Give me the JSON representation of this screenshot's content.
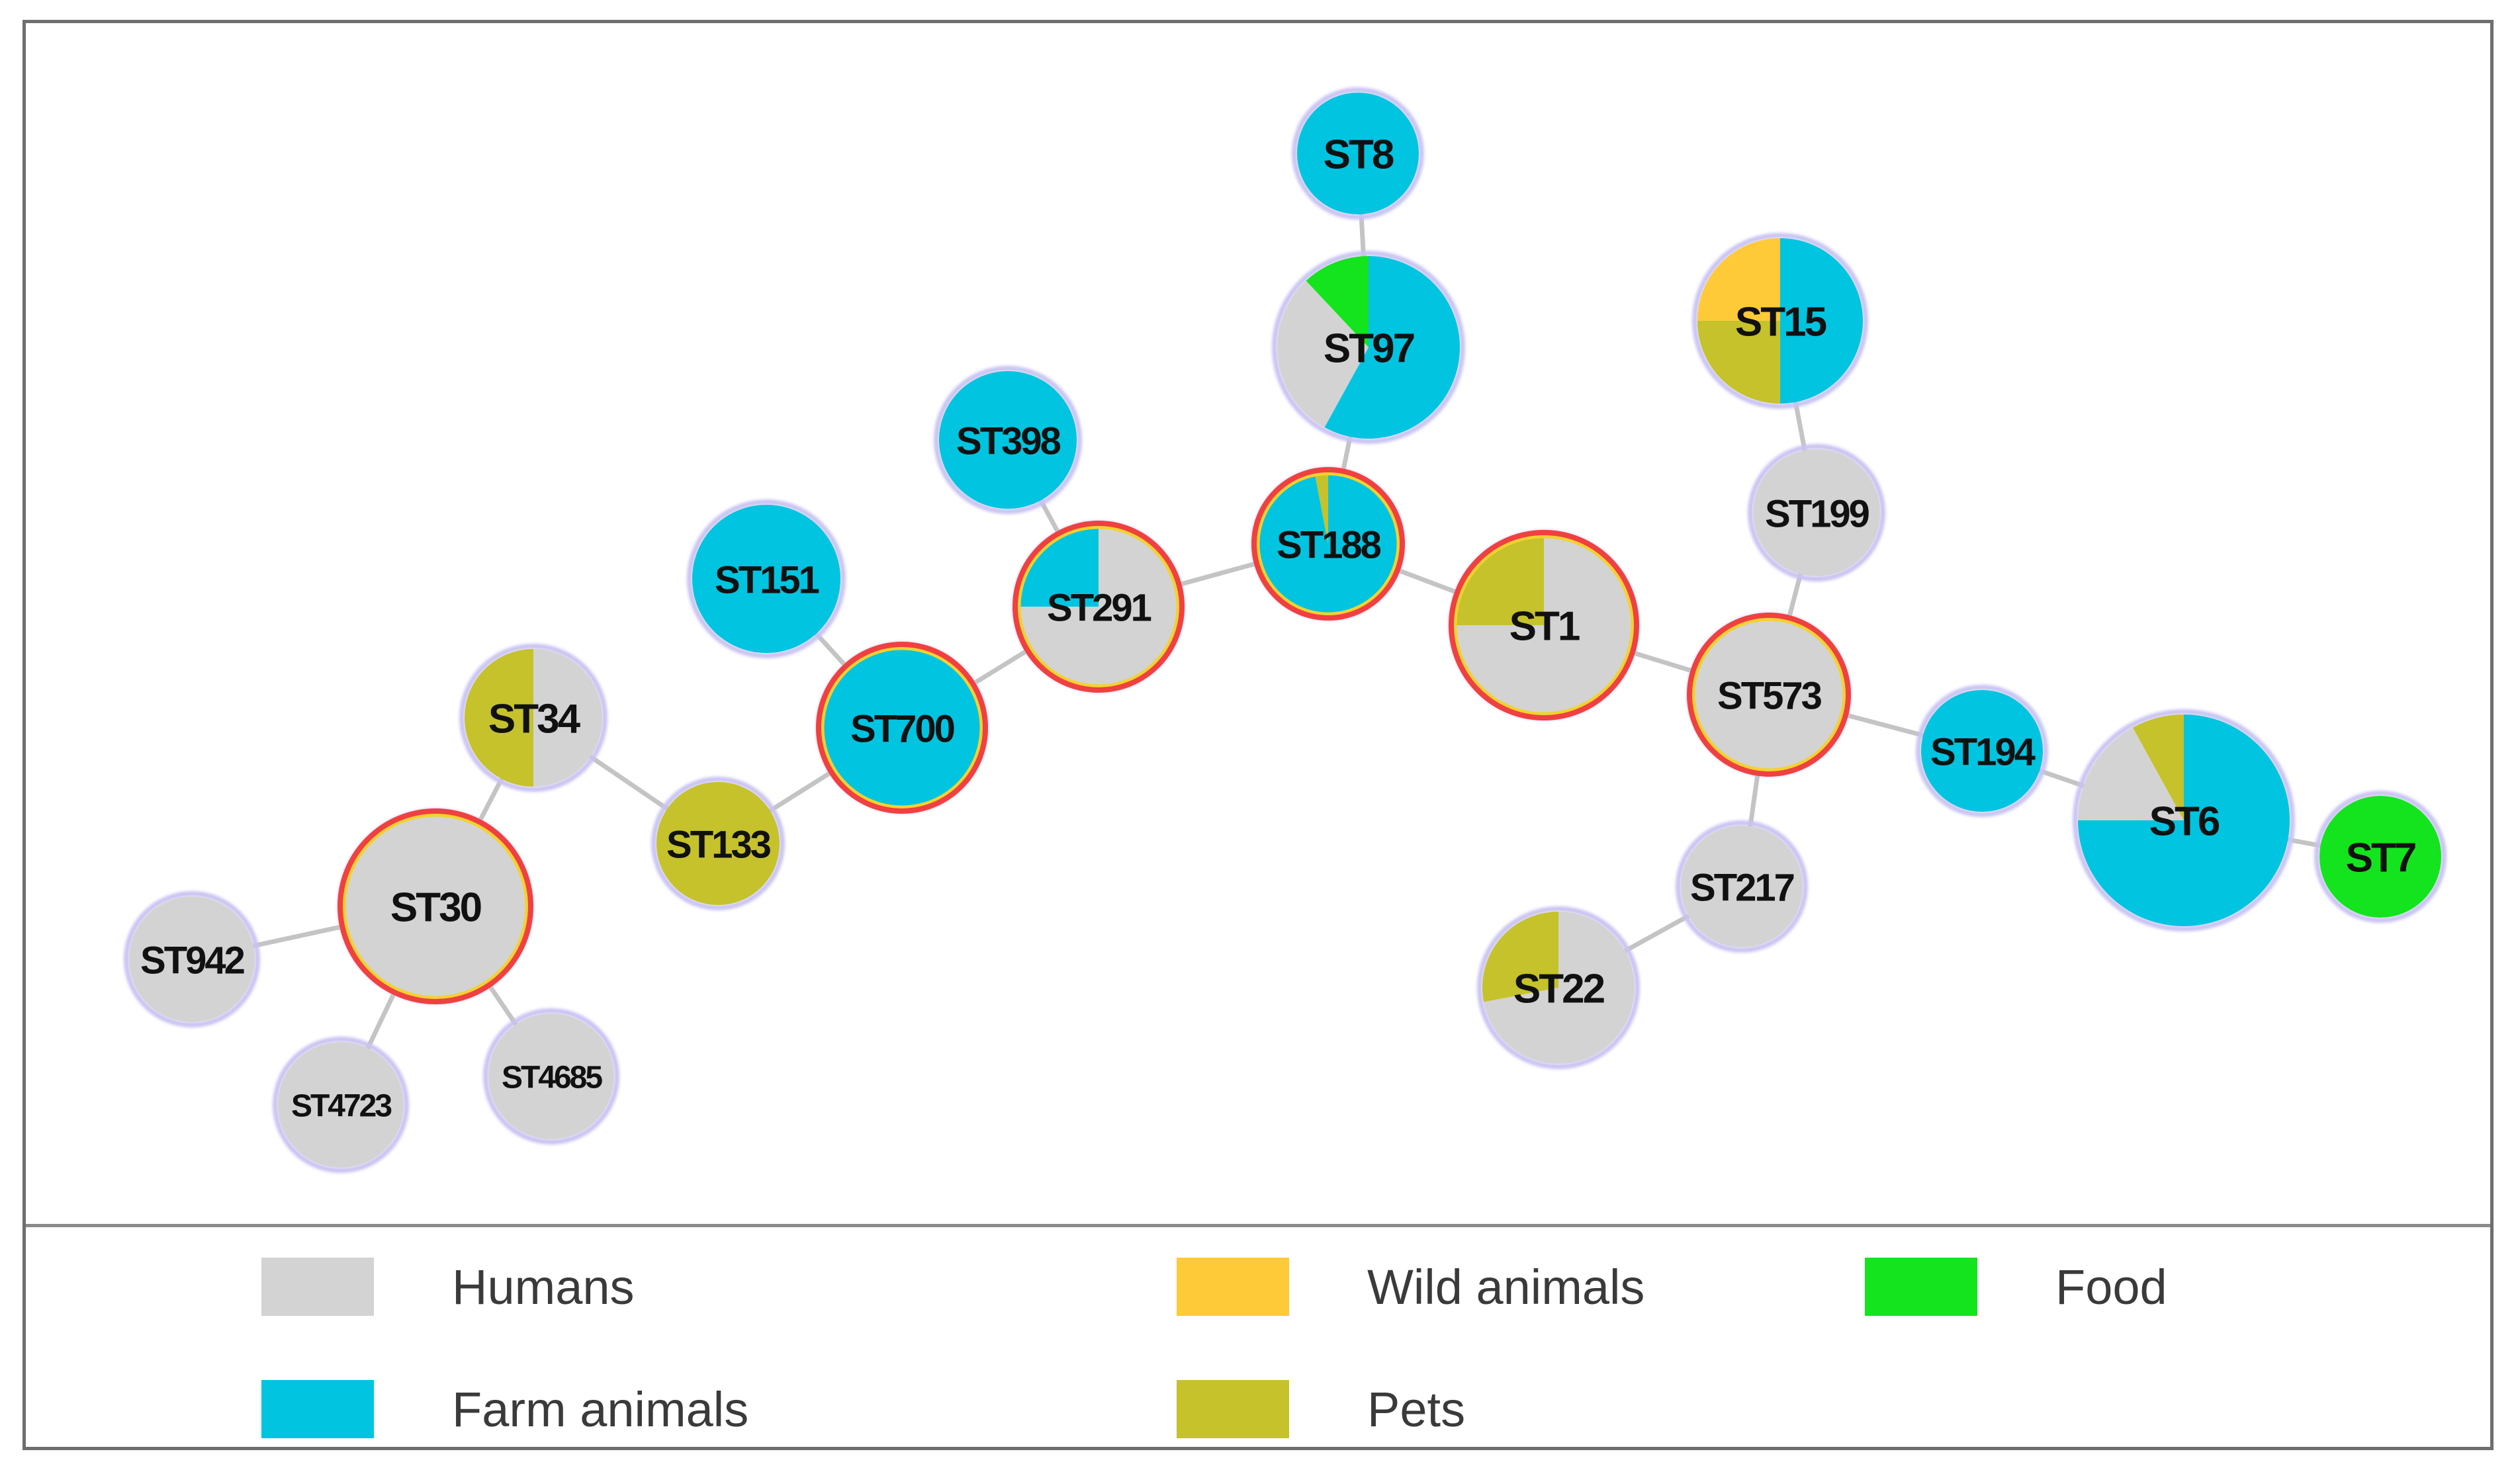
{
  "diagram": {
    "type": "minimum-spanning-tree",
    "legend": [
      {
        "key": "humans",
        "label": "Humans",
        "color": "#d3d3d3"
      },
      {
        "key": "wild",
        "label": "Wild animals",
        "color": "#ffca38"
      },
      {
        "key": "food",
        "label": "Food",
        "color": "#13e41e"
      },
      {
        "key": "farm",
        "label": "Farm animals",
        "color": "#00c4e0"
      },
      {
        "key": "pets",
        "label": "Pets",
        "color": "#c5c22c"
      }
    ],
    "nodes": [
      {
        "id": "ST8",
        "label": "ST8",
        "composition": {
          "farm": 1
        },
        "highlight": false
      },
      {
        "id": "ST97",
        "label": "ST97",
        "composition": {
          "farm": 0.58,
          "humans": 0.3,
          "food": 0.12
        },
        "highlight": false
      },
      {
        "id": "ST398",
        "label": "ST398",
        "composition": {
          "farm": 1
        },
        "highlight": false
      },
      {
        "id": "ST188",
        "label": "ST188",
        "composition": {
          "farm": 0.97,
          "pets": 0.03
        },
        "highlight": true
      },
      {
        "id": "ST151",
        "label": "ST151",
        "composition": {
          "farm": 1
        },
        "highlight": false
      },
      {
        "id": "ST291",
        "label": "ST291",
        "composition": {
          "humans": 0.75,
          "farm": 0.25
        },
        "highlight": true
      },
      {
        "id": "ST700",
        "label": "ST700",
        "composition": {
          "farm": 1
        },
        "highlight": true
      },
      {
        "id": "ST34",
        "label": "ST34",
        "composition": {
          "humans": 0.5,
          "pets": 0.5
        },
        "highlight": false
      },
      {
        "id": "ST133",
        "label": "ST133",
        "composition": {
          "pets": 1
        },
        "highlight": false
      },
      {
        "id": "ST30",
        "label": "ST30",
        "composition": {
          "humans": 1
        },
        "highlight": true
      },
      {
        "id": "ST942",
        "label": "ST942",
        "composition": {
          "humans": 1
        },
        "highlight": false
      },
      {
        "id": "ST4723",
        "label": "ST4723",
        "composition": {
          "humans": 1
        },
        "highlight": false
      },
      {
        "id": "ST4685",
        "label": "ST4685",
        "composition": {
          "humans": 1
        },
        "highlight": false
      },
      {
        "id": "ST1",
        "label": "ST1",
        "composition": {
          "humans": 0.75,
          "pets": 0.25
        },
        "highlight": true
      },
      {
        "id": "ST15",
        "label": "ST15",
        "composition": {
          "farm": 0.5,
          "pets": 0.25,
          "wild": 0.25
        },
        "highlight": false
      },
      {
        "id": "ST199",
        "label": "ST199",
        "composition": {
          "humans": 1
        },
        "highlight": false
      },
      {
        "id": "ST573",
        "label": "ST573",
        "composition": {
          "humans": 1
        },
        "highlight": true
      },
      {
        "id": "ST194",
        "label": "ST194",
        "composition": {
          "farm": 1
        },
        "highlight": false
      },
      {
        "id": "ST6",
        "label": "ST6",
        "composition": {
          "farm": 0.75,
          "humans": 0.17,
          "pets": 0.08
        },
        "highlight": false
      },
      {
        "id": "ST7",
        "label": "ST7",
        "composition": {
          "food": 1
        },
        "highlight": false
      },
      {
        "id": "ST217",
        "label": "ST217",
        "composition": {
          "humans": 1
        },
        "highlight": false
      },
      {
        "id": "ST22",
        "label": "ST22",
        "composition": {
          "humans": 0.72,
          "pets": 0.28
        },
        "highlight": false
      }
    ],
    "edges": [
      [
        "ST8",
        "ST97"
      ],
      [
        "ST97",
        "ST188"
      ],
      [
        "ST398",
        "ST291"
      ],
      [
        "ST291",
        "ST188"
      ],
      [
        "ST151",
        "ST700"
      ],
      [
        "ST700",
        "ST291"
      ],
      [
        "ST700",
        "ST133"
      ],
      [
        "ST133",
        "ST34"
      ],
      [
        "ST34",
        "ST30"
      ],
      [
        "ST30",
        "ST942"
      ],
      [
        "ST30",
        "ST4723"
      ],
      [
        "ST30",
        "ST4685"
      ],
      [
        "ST188",
        "ST1"
      ],
      [
        "ST1",
        "ST573"
      ],
      [
        "ST573",
        "ST199"
      ],
      [
        "ST199",
        "ST15"
      ],
      [
        "ST573",
        "ST194"
      ],
      [
        "ST194",
        "ST6"
      ],
      [
        "ST6",
        "ST7"
      ],
      [
        "ST573",
        "ST217"
      ],
      [
        "ST217",
        "ST22"
      ]
    ]
  }
}
